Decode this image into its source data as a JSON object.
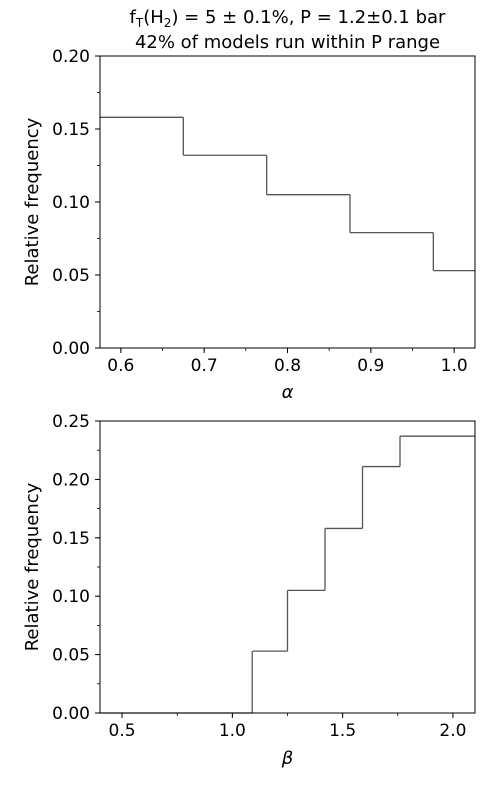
{
  "title_parts": {
    "f": "f",
    "sub1": "T",
    "mid": "(H",
    "sub2": "2",
    "rest": ") = 5 ± 0.1%, P = 1.2±0.1 bar"
  },
  "subtitle": "42% of models run within P range",
  "chart_data": [
    {
      "type": "histogram",
      "xlabel": "α",
      "ylabel": "Relative frequency",
      "xlim": [
        0.575,
        1.025
      ],
      "ylim": [
        0.0,
        0.2
      ],
      "xticks": [
        "0.6",
        "0.7",
        "0.8",
        "0.9",
        "1.0"
      ],
      "yticks": [
        "0.00",
        "0.05",
        "0.10",
        "0.15",
        "0.20"
      ],
      "bin_edges": [
        0.575,
        0.675,
        0.775,
        0.875,
        0.975,
        1.025
      ],
      "values": [
        0.158,
        0.132,
        0.105,
        0.079,
        0.053
      ],
      "color": "#555555",
      "grid": false
    },
    {
      "type": "histogram",
      "xlabel": "β",
      "ylabel": "Relative frequency",
      "xlim": [
        0.4,
        2.1
      ],
      "ylim": [
        0.0,
        0.25
      ],
      "xticks": [
        "0.5",
        "1.0",
        "1.5",
        "2.0"
      ],
      "yticks": [
        "0.00",
        "0.05",
        "0.10",
        "0.15",
        "0.20",
        "0.25"
      ],
      "bin_edges": [
        0.4,
        1.09,
        1.25,
        1.42,
        1.59,
        1.76,
        2.1
      ],
      "values": [
        0.0,
        0.053,
        0.105,
        0.158,
        0.211,
        0.237
      ],
      "color": "#555555",
      "grid": false
    }
  ]
}
